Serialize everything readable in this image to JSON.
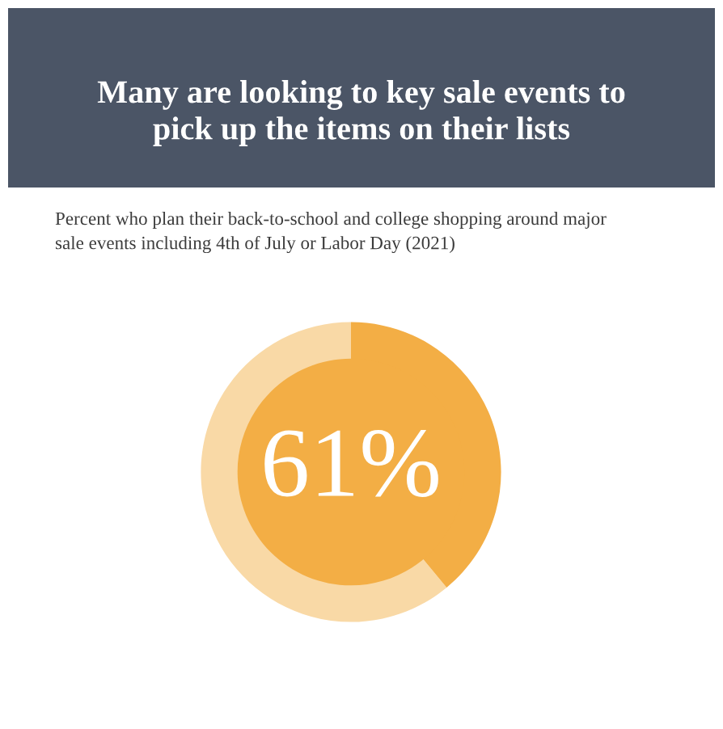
{
  "chart_data": {
    "type": "donut",
    "title": "Many are looking to key sale events to pick up the items on their lists",
    "subtitle": "Percent who plan their back-to-school and college shopping around major sale events including 4th of July or Labor Day (2021)",
    "categories": [
      null,
      null
    ],
    "values": [
      61,
      39
    ],
    "colors": [
      "#f9d9a6",
      "#f3ae45"
    ],
    "annotations": [
      "61%"
    ]
  }
}
